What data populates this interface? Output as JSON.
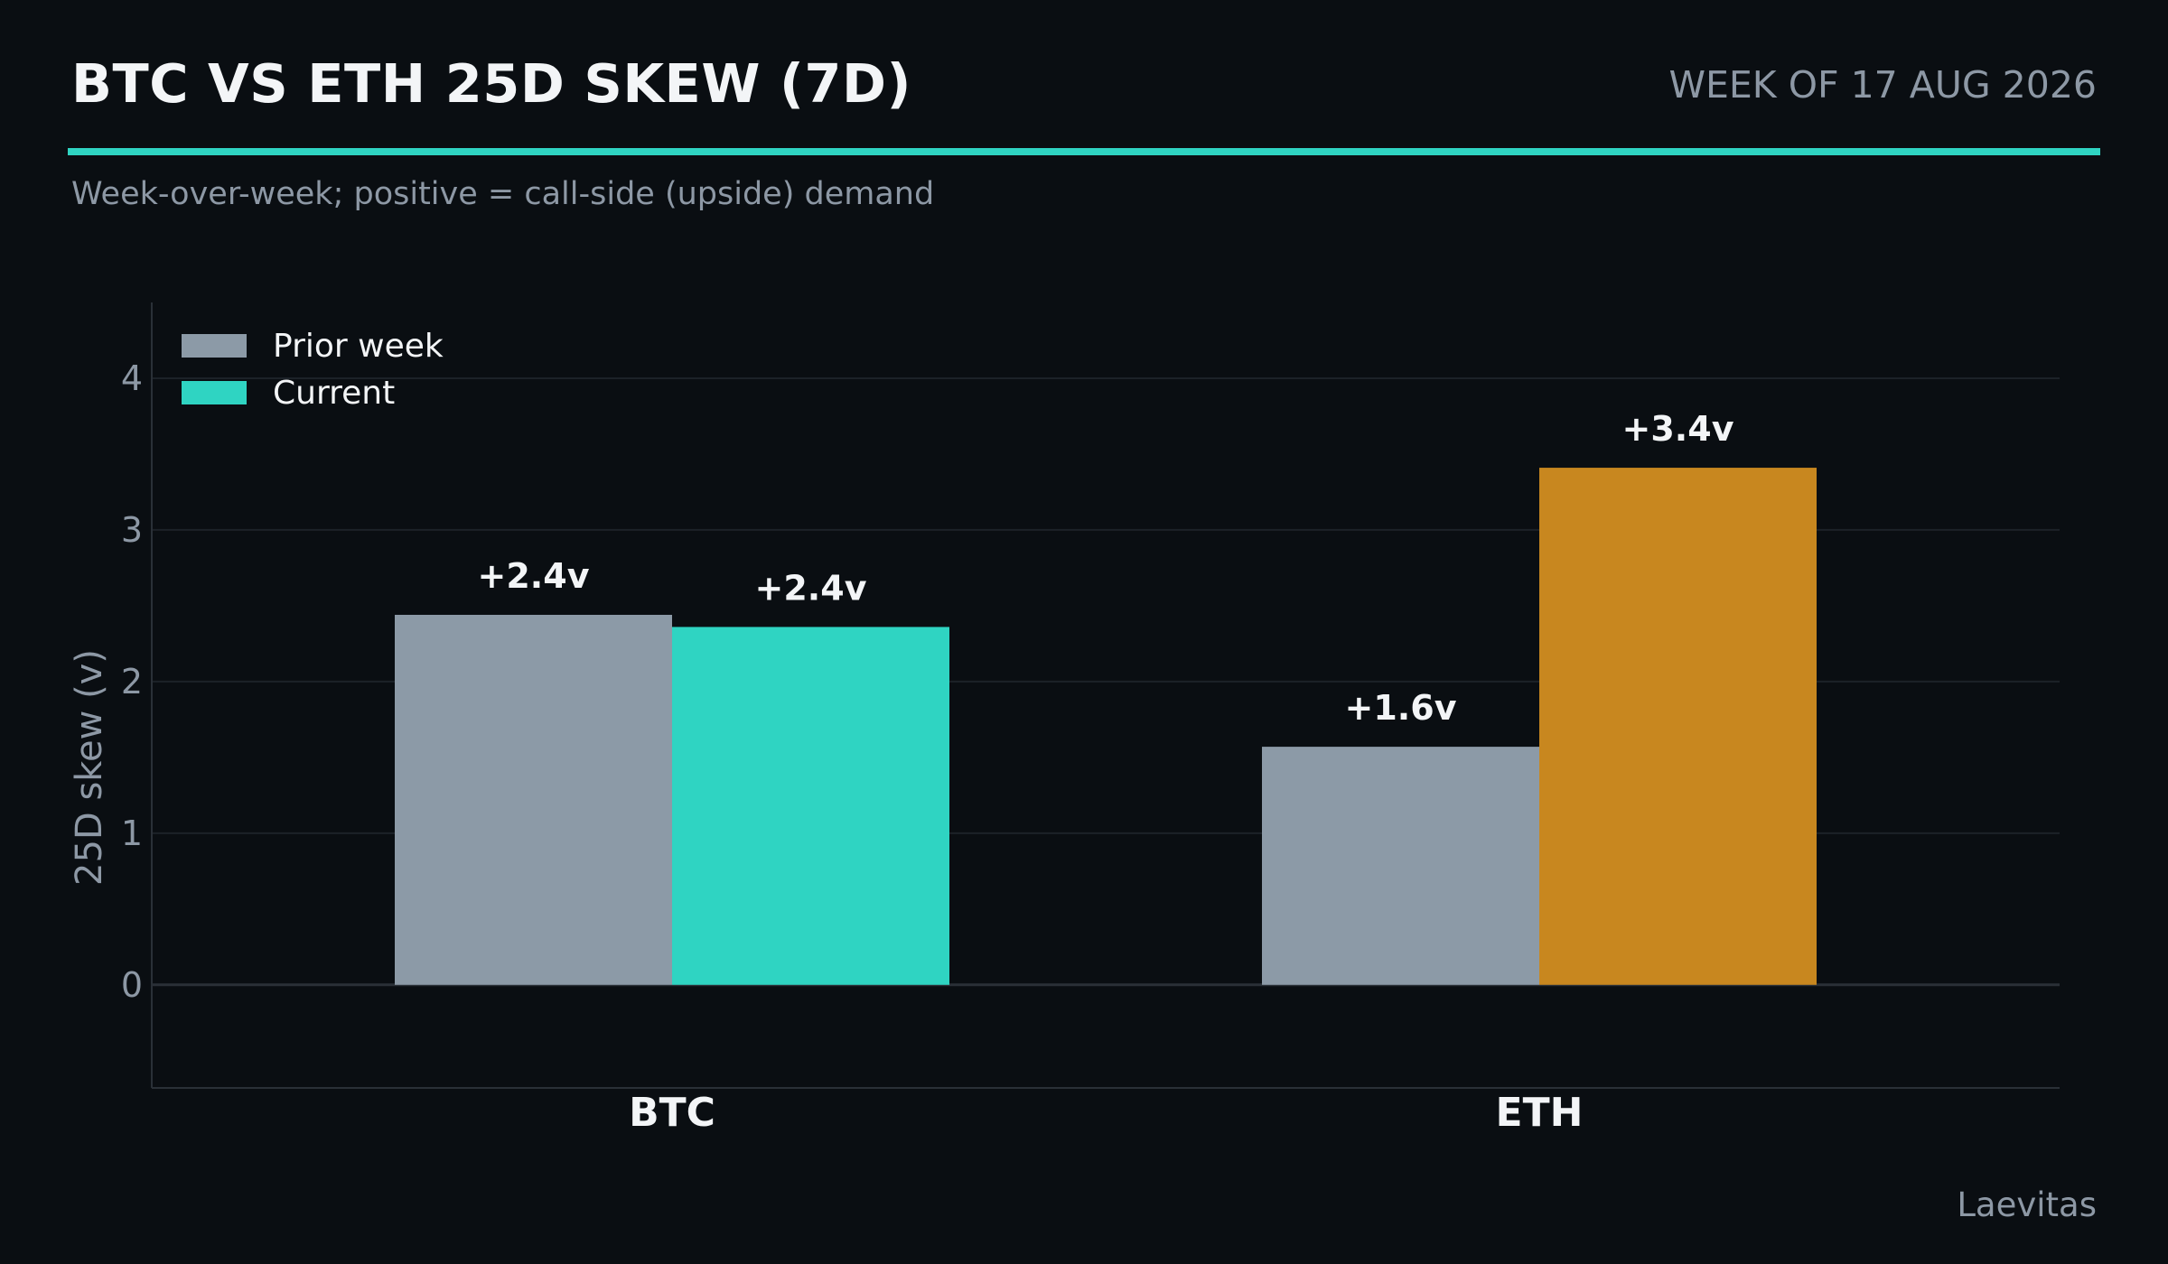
{
  "header": {
    "title": "BTC VS ETH 25D SKEW (7D)",
    "week_label": "WEEK OF 17 AUG 2026",
    "subtitle": "Week-over-week; positive = call-side (upside) demand"
  },
  "footer": {
    "source": "Laevitas"
  },
  "colors": {
    "background": "#0a0e12",
    "accent": "#2fd4c2",
    "prior": "#8c9aa7",
    "btc_current": "#2fd4c2",
    "eth_current": "#c8871f",
    "grid": "#1c2228",
    "text": "#f3f5f7",
    "muted": "#8d98a5"
  },
  "chart_data": {
    "type": "bar",
    "categories": [
      "BTC",
      "ETH"
    ],
    "series": [
      {
        "name": "Prior week",
        "values": [
          2.44,
          1.57
        ],
        "labels": [
          "+2.4v",
          "+1.6v"
        ]
      },
      {
        "name": "Current",
        "values": [
          2.36,
          3.41
        ],
        "labels": [
          "+2.4v",
          "+3.4v"
        ]
      }
    ],
    "ylabel": "25D skew (v)",
    "xlabel": "",
    "ylim": [
      -0.68,
      4.5
    ],
    "yticks": [
      0,
      1,
      2,
      3,
      4
    ],
    "grid": true,
    "legend": "top-left"
  }
}
